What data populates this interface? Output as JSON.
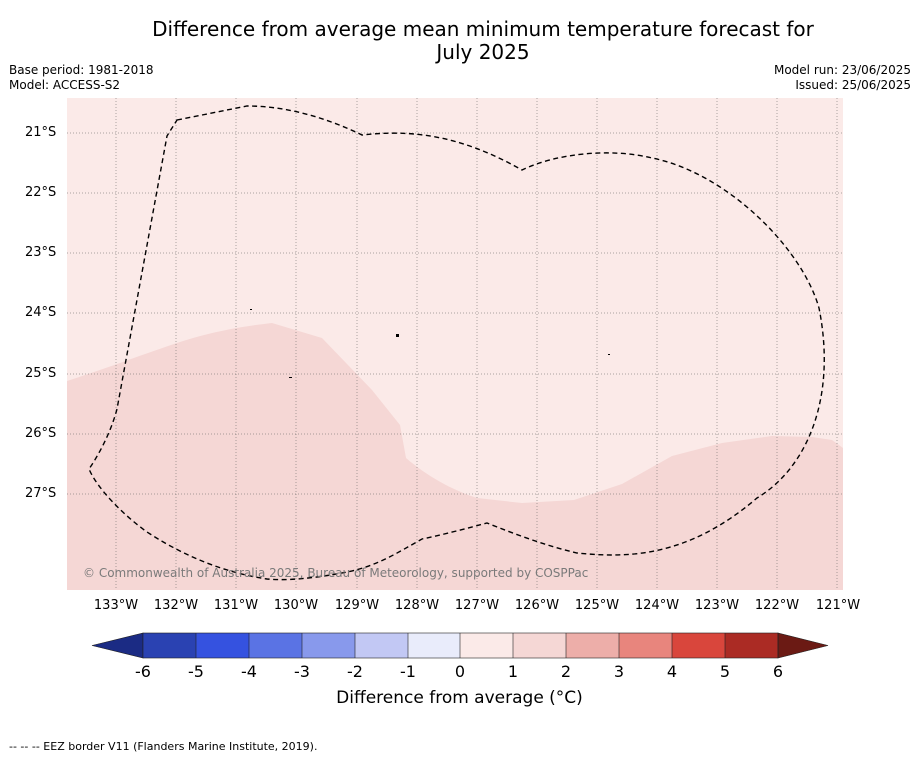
{
  "title": {
    "line1": "Difference from average mean minimum temperature forecast for",
    "line2": "July 2025"
  },
  "meta": {
    "base_period": "Base period: 1981-2018",
    "model": "Model: ACCESS-S2",
    "model_run": "Model run: 23/06/2025",
    "issued": "Issued: 25/06/2025"
  },
  "map": {
    "latitude_labels": [
      "21°S",
      "22°S",
      "23°S",
      "24°S",
      "25°S",
      "26°S",
      "27°S"
    ],
    "longitude_labels": [
      "133°W",
      "132°W",
      "131°W",
      "130°W",
      "129°W",
      "128°W",
      "127°W",
      "126°W",
      "125°W",
      "124°W",
      "123°W",
      "122°W",
      "121°W"
    ],
    "copyright": "© Commonwealth of Australia 2025, Bureau of Meteorology, supported by COSPPac",
    "colors": {
      "anomaly_0_to_1": "#fbeae8",
      "anomaly_1_to_2": "#f5d7d5",
      "grid_line": "#555555",
      "eez_border": "#000000"
    }
  },
  "colorbar": {
    "tick_labels": [
      "-6",
      "-5",
      "-4",
      "-3",
      "-2",
      "-1",
      "0",
      "1",
      "2",
      "3",
      "4",
      "5",
      "6"
    ],
    "colors": [
      "#1b2b84",
      "#2a42b2",
      "#3552e0",
      "#5a73e4",
      "#8899ec",
      "#c2c8f4",
      "#e9ecfb",
      "#fbeae8",
      "#f5d7d5",
      "#edaea9",
      "#e8857d",
      "#d9463c",
      "#ab2b24",
      "#6b1a14"
    ],
    "title": "Difference from average ( $^\\circ$C)",
    "title_display": "Difference from average (°C)"
  },
  "footnote": "-- -- -- EEZ border V11 (Flanders Marine Institute, 2019)."
}
